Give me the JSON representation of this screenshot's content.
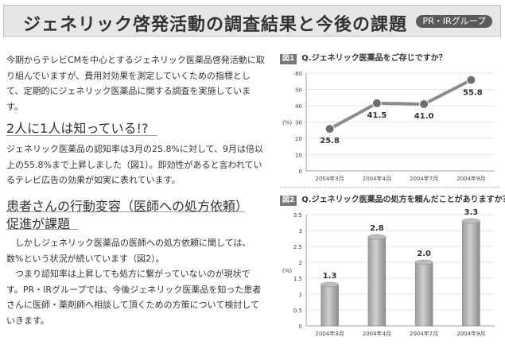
{
  "header": {
    "title": "ジェネリック啓発活動の調査結果と今後の課題",
    "badge": "PR・IRグループ"
  },
  "article": {
    "para1": "今期からテレビCMを中心とするジェネリック医薬品啓発活動に取り組んでいますが、費用対効果を測定していくための指標として、定期的にジェネリック医薬品に関する調査を実施しています。",
    "heading1": "2人に1人は知っている!?",
    "para2": "ジェネリック医薬品の認知率は3月の25.8%に対して、9月は倍以上の55.8%まで上昇しました（図1）。即効性があると言われているテレビ広告の効果が如実に表れています。",
    "heading2_line1": "患者さんの行動変容（医師への処方依頼）",
    "heading2_line2": "促進が課題",
    "para3a": "しかしジェネリック医薬品の医師への処方依頼に関しては、数%という状況が続いています（図2）。",
    "para3b": "つまり認知率は上昇しても処方に繋がっていないのが現状です。PR・IRグループでは、今後ジェネリック医薬品を知った患者さんに医師・薬剤師へ相談して頂くための方策について検討していきます。"
  },
  "chart_data": [
    {
      "type": "line",
      "fig_label": "図1",
      "title": "Q.ジェネリック医薬品をご存じですか？",
      "ylabel": "(%)",
      "categories": [
        "2004年3月",
        "2004年4月",
        "2004年7月",
        "2004年9月"
      ],
      "values": [
        25.8,
        41.5,
        41.0,
        55.8
      ],
      "value_labels": [
        "25.8",
        "41.5",
        "41.0",
        "55.8"
      ],
      "ylim": [
        0,
        60
      ],
      "yticks": [
        "0",
        "10",
        "20",
        "30",
        "40",
        "50",
        "60"
      ]
    },
    {
      "type": "bar",
      "fig_label": "図2",
      "title": "Q.ジェネリック医薬品の処方を頼んだことがありますか？",
      "ylabel": "(%)",
      "categories": [
        "2004年3月",
        "2004年4月",
        "2004年7月",
        "2004年9月"
      ],
      "values": [
        1.3,
        2.8,
        2.0,
        3.3
      ],
      "value_labels": [
        "1.3",
        "2.8",
        "2.0",
        "3.3"
      ],
      "ylim": [
        0,
        3.5
      ],
      "yticks": [
        "0",
        "0.5",
        "1",
        "1.5",
        "2",
        "2.5",
        "3",
        "3.5"
      ]
    }
  ]
}
